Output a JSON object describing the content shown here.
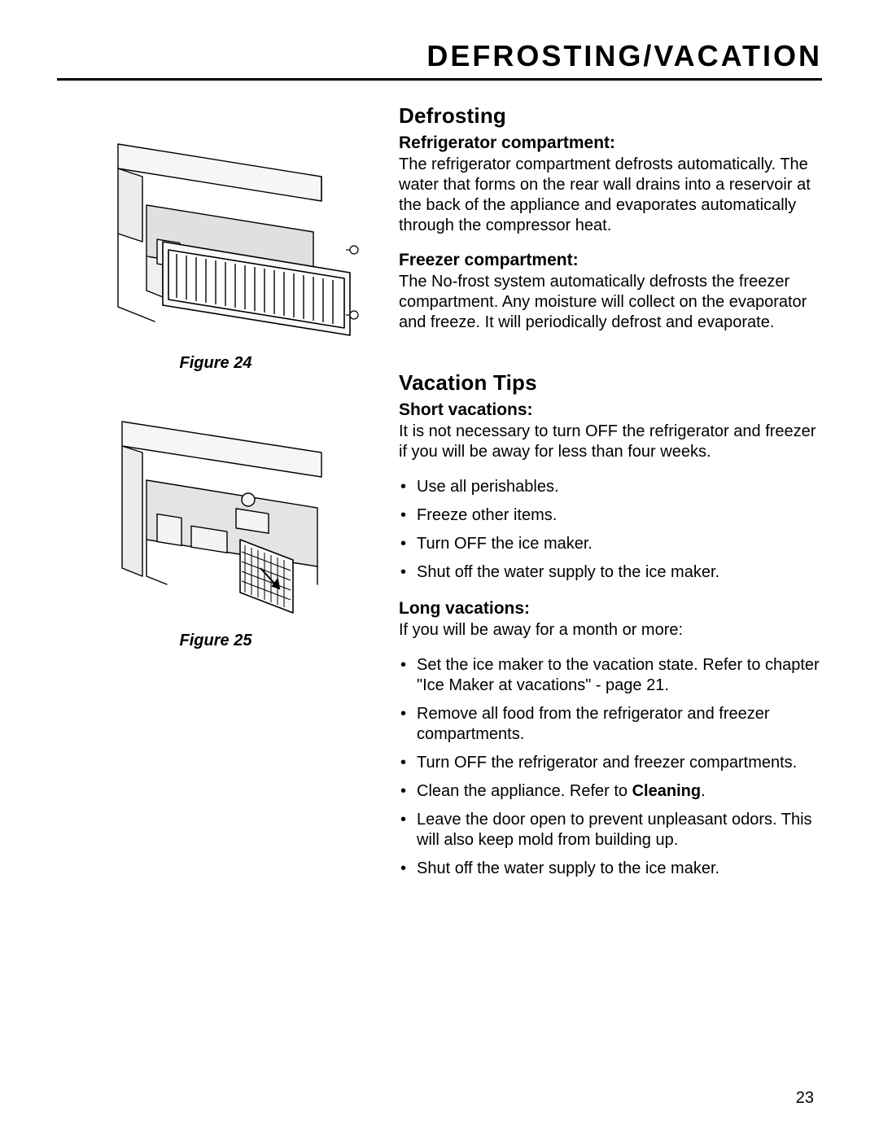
{
  "page": {
    "title": "DEFROSTING/VACATION",
    "number": "23"
  },
  "figures": {
    "fig24": {
      "caption": "Figure 24"
    },
    "fig25": {
      "caption": "Figure 25"
    }
  },
  "sections": {
    "defrosting": {
      "heading": "Defrosting",
      "refrigerator": {
        "sub": "Refrigerator compartment:",
        "text": "The refrigerator compartment defrosts automatically. The water that forms on the rear wall drains into a reservoir at the back of the appliance and evaporates automatically through the compressor heat."
      },
      "freezer": {
        "sub": "Freezer compartment:",
        "text": "The No-frost system automatically defrosts the freezer compartment. Any moisture will collect on the evaporator and freeze. It will periodically defrost and evaporate."
      }
    },
    "vacation": {
      "heading": "Vacation Tips",
      "short": {
        "sub": "Short vacations:",
        "intro": "It is not necessary to turn OFF the refrigerator and freezer if you will be away for less than four weeks.",
        "items": [
          "Use all perishables.",
          "Freeze other items.",
          "Turn OFF the ice maker.",
          "Shut off the water supply to the ice maker."
        ]
      },
      "long": {
        "sub": "Long vacations:",
        "intro": "If you will be away for a month or more:",
        "items": [
          "Set the ice maker to the vacation state. Refer to chapter \"Ice Maker at vacations\" - page 21.",
          "Remove all food from the refrigerator and freezer compartments.",
          "Turn OFF the refrigerator and freezer compartments.",
          "Clean the appliance. Refer to <b>Cleaning</b>.",
          "Leave the door open to prevent unpleasant odors. This will also keep mold from building up.",
          "Shut off the water supply to the ice maker."
        ]
      }
    }
  },
  "style": {
    "stroke": "#000000",
    "fill_light": "#f2f2f2",
    "fill_mid": "#d0d0d0"
  }
}
